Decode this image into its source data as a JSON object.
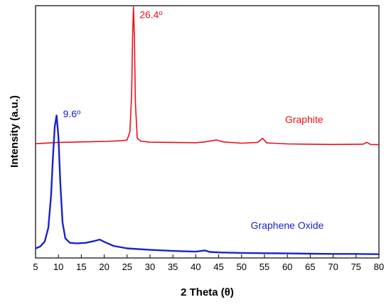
{
  "chart_data": {
    "type": "line",
    "title": "",
    "xlabel": "2 Theta (θ)",
    "ylabel": "Intensity (a.u.)",
    "xlim": [
      5,
      80
    ],
    "ylim": [
      0,
      1
    ],
    "xticks": [
      5,
      10,
      15,
      20,
      25,
      30,
      35,
      40,
      45,
      50,
      55,
      60,
      65,
      70,
      75,
      80
    ],
    "yticks_shown": false,
    "grid": false,
    "legend": "none",
    "series": [
      {
        "name": "Graphite",
        "color": "#e8111b",
        "x": [
          5,
          10,
          15,
          20,
          24,
          25,
          25.6,
          26.0,
          26.2,
          26.4,
          26.6,
          26.8,
          27.2,
          28,
          30,
          35,
          40,
          42,
          43,
          44.5,
          46,
          50,
          53.5,
          54.6,
          55.5,
          60,
          65,
          70,
          76.5,
          77.4,
          78.2,
          80
        ],
        "y": [
          0.453,
          0.458,
          0.46,
          0.462,
          0.465,
          0.468,
          0.5,
          0.65,
          0.88,
          0.995,
          0.87,
          0.62,
          0.475,
          0.463,
          0.459,
          0.458,
          0.457,
          0.46,
          0.463,
          0.468,
          0.46,
          0.455,
          0.458,
          0.474,
          0.456,
          0.452,
          0.451,
          0.45,
          0.451,
          0.458,
          0.45,
          0.449
        ]
      },
      {
        "name": "Graphene Oxide",
        "color": "#1a23c8",
        "x": [
          5,
          6,
          7,
          7.8,
          8.4,
          8.8,
          9.2,
          9.6,
          10.0,
          10.4,
          10.9,
          11.5,
          12.5,
          14,
          16,
          18,
          19,
          20,
          22,
          25,
          30,
          35,
          40,
          42,
          43,
          45,
          50,
          55,
          60,
          65,
          70,
          75,
          80
        ],
        "y": [
          0.038,
          0.045,
          0.065,
          0.12,
          0.25,
          0.4,
          0.52,
          0.565,
          0.48,
          0.3,
          0.14,
          0.078,
          0.06,
          0.058,
          0.06,
          0.068,
          0.073,
          0.064,
          0.048,
          0.038,
          0.032,
          0.028,
          0.025,
          0.03,
          0.024,
          0.022,
          0.02,
          0.019,
          0.018,
          0.017,
          0.016,
          0.016,
          0.015
        ]
      }
    ],
    "annotations": [
      {
        "text": "26.4º",
        "x": 27.7,
        "y": 0.965,
        "color": "#e8111b"
      },
      {
        "text": "Graphite",
        "x": 59.5,
        "y": 0.55,
        "color": "#e8111b"
      },
      {
        "text": "9.6º",
        "x": 11.0,
        "y": 0.572,
        "color": "#1a23c8"
      },
      {
        "text": "Graphene Oxide",
        "x": 52.0,
        "y": 0.13,
        "color": "#1a23c8"
      }
    ]
  }
}
